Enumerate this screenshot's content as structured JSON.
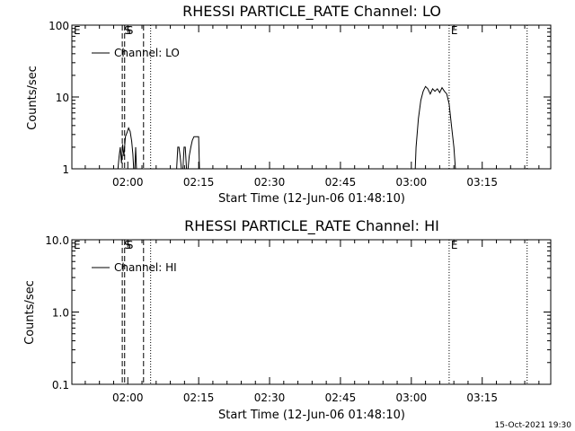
{
  "timestamp": "15-Oct-2021 19:30",
  "chart_data": [
    {
      "type": "line",
      "title": "RHESSI PARTICLE_RATE Channel: LO",
      "xlabel": "Start Time (12-Jun-06 01:48:10)",
      "ylabel": "Counts/sec",
      "yscale": "log",
      "ylim": [
        1,
        100
      ],
      "xlim": [
        "01:48:10",
        "03:29:30"
      ],
      "xticks": [
        "02:00",
        "02:15",
        "02:30",
        "02:45",
        "03:00",
        "03:15"
      ],
      "yticks": [
        "1",
        "10",
        "100"
      ],
      "legend": {
        "entries": [
          "Channel: LO"
        ],
        "position": "top-left"
      },
      "markers": [
        {
          "label": "E",
          "time": "01:48:10",
          "style": "none"
        },
        {
          "label": "S",
          "time": "01:58:50",
          "style": "dashed"
        },
        {
          "label": "S",
          "time": "01:59:20",
          "style": "dashed"
        },
        {
          "time": "02:03:20",
          "style": "dashed"
        },
        {
          "time": "02:04:50",
          "style": "dotted"
        },
        {
          "label": "E",
          "time": "03:08:00",
          "style": "dotted"
        },
        {
          "time": "03:24:30",
          "style": "dotted"
        }
      ],
      "series": [
        {
          "name": "Channel: LO",
          "segments": [
            [
              [
                "01:57:55",
                1
              ],
              [
                "01:58:10",
                1.5
              ],
              [
                "01:58:25",
                2
              ],
              [
                "01:58:40",
                1.2
              ],
              [
                "01:58:55",
                2.2
              ],
              [
                "01:59:10",
                1.5
              ],
              [
                "01:59:30",
                2.8
              ],
              [
                "01:59:50",
                3.2
              ],
              [
                "02:00:10",
                3.7
              ],
              [
                "02:00:30",
                3.3
              ],
              [
                "02:00:50",
                2.4
              ],
              [
                "02:01:05",
                1.6
              ],
              [
                "02:01:15",
                1
              ]
            ],
            [
              [
                "02:01:30",
                1
              ],
              [
                "02:01:40",
                2
              ],
              [
                "02:01:50",
                1
              ]
            ],
            [
              [
                "02:10:20",
                1
              ],
              [
                "02:10:35",
                2
              ],
              [
                "02:10:50",
                2
              ],
              [
                "02:11:05",
                1.5
              ],
              [
                "02:11:20",
                1
              ]
            ],
            [
              [
                "02:11:40",
                1
              ],
              [
                "02:11:55",
                2
              ],
              [
                "02:12:10",
                2
              ],
              [
                "02:12:25",
                1
              ]
            ],
            [
              [
                "02:12:45",
                1
              ],
              [
                "02:13:00",
                1.5
              ],
              [
                "02:13:20",
                2
              ],
              [
                "02:13:40",
                2.5
              ],
              [
                "02:14:00",
                2.8
              ],
              [
                "02:14:40",
                2.8
              ],
              [
                "02:15:00",
                2.8
              ],
              [
                "02:15:10",
                1
              ]
            ],
            [
              [
                "03:00:50",
                1
              ],
              [
                "03:01:00",
                2
              ],
              [
                "03:01:30",
                5
              ],
              [
                "03:02:00",
                9
              ],
              [
                "03:02:30",
                12
              ],
              [
                "03:03:00",
                14
              ],
              [
                "03:03:30",
                13
              ],
              [
                "03:04:00",
                11
              ],
              [
                "03:04:30",
                13
              ],
              [
                "03:05:00",
                12
              ],
              [
                "03:05:30",
                13
              ],
              [
                "03:06:00",
                11.5
              ],
              [
                "03:06:30",
                13.5
              ],
              [
                "03:07:00",
                12
              ],
              [
                "03:07:30",
                11
              ],
              [
                "03:08:00",
                8
              ],
              [
                "03:08:30",
                4
              ],
              [
                "03:09:00",
                2
              ],
              [
                "03:09:20",
                1
              ]
            ]
          ]
        }
      ]
    },
    {
      "type": "line",
      "title": "RHESSI PARTICLE_RATE Channel: HI",
      "xlabel": "Start Time (12-Jun-06 01:48:10)",
      "ylabel": "Counts/sec",
      "yscale": "log",
      "ylim": [
        0.1,
        10
      ],
      "xlim": [
        "01:48:10",
        "03:29:30"
      ],
      "xticks": [
        "02:00",
        "02:15",
        "02:30",
        "02:45",
        "03:00",
        "03:15"
      ],
      "yticks": [
        "0.1",
        "1.0",
        "10.0"
      ],
      "legend": {
        "entries": [
          "Channel: HI"
        ],
        "position": "top-left"
      },
      "markers": [
        {
          "label": "E",
          "time": "01:48:10",
          "style": "none"
        },
        {
          "label": "S",
          "time": "01:58:50",
          "style": "dashed"
        },
        {
          "label": "S",
          "time": "01:59:20",
          "style": "dashed"
        },
        {
          "time": "02:03:20",
          "style": "dashed"
        },
        {
          "time": "02:04:50",
          "style": "dotted"
        },
        {
          "label": "E",
          "time": "03:08:00",
          "style": "dotted"
        },
        {
          "time": "03:24:30",
          "style": "dotted"
        }
      ],
      "series": [
        {
          "name": "Channel: HI",
          "segments": []
        }
      ]
    }
  ]
}
